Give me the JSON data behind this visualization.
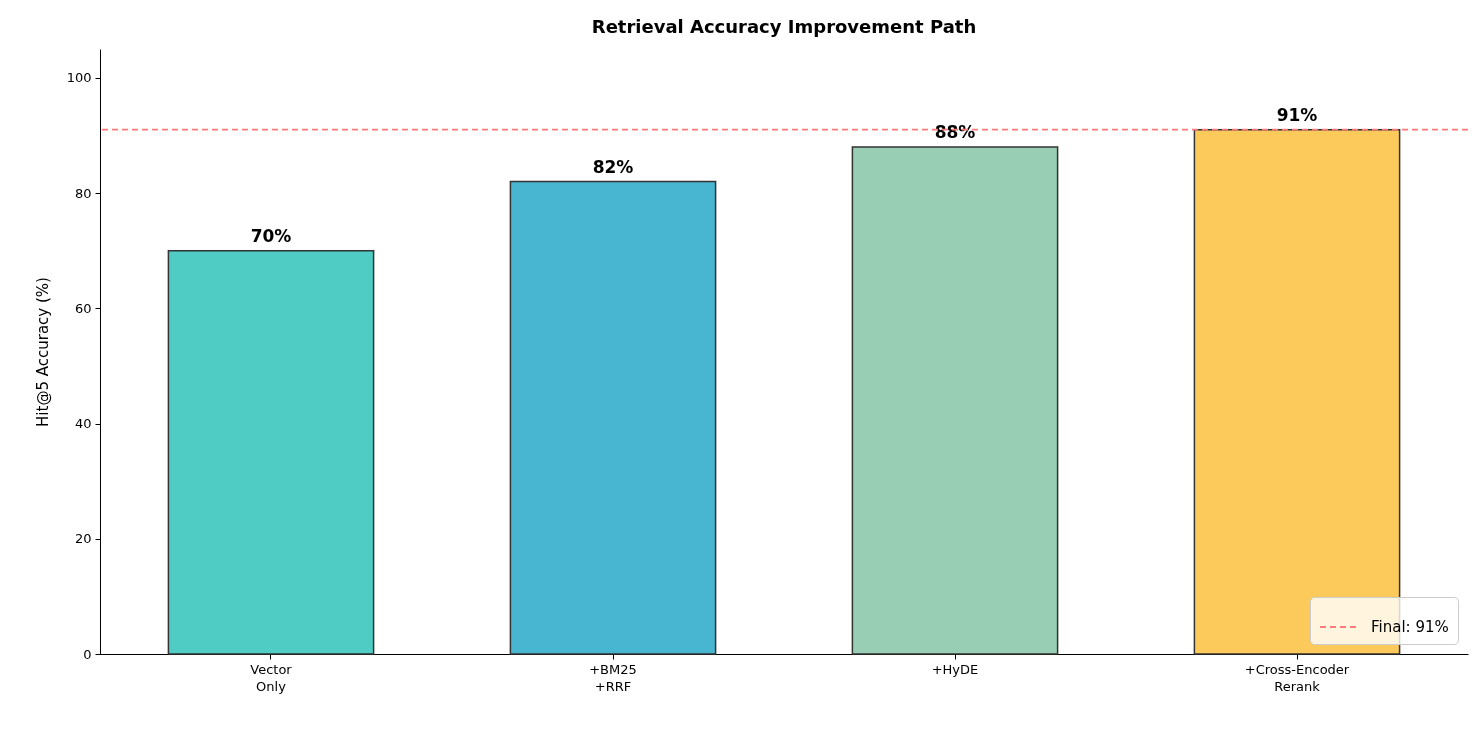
{
  "chart_data": {
    "type": "bar",
    "title": "Retrieval Accuracy Improvement Path",
    "ylabel": "Hit@5 Accuracy (%)",
    "categories": [
      "Vector\nOnly",
      "+BM25\n+RRF",
      "+HyDE",
      "+Cross-Encoder\nRerank"
    ],
    "values": [
      70,
      82,
      88,
      91
    ],
    "colors": [
      "#4fcdc4",
      "#48b5d1",
      "#98ceb3",
      "#fcca5a"
    ],
    "value_labels": [
      "70%",
      "82%",
      "88%",
      "91%"
    ],
    "ylim": [
      0,
      105
    ],
    "yticks": [
      0,
      20,
      40,
      60,
      80,
      100
    ],
    "ref_lines": [
      {
        "axis": "y",
        "value": 91,
        "label": "Final: 91%",
        "color": "#ff7b7b",
        "line_style": "dashed"
      }
    ],
    "legend": "bottom right"
  }
}
